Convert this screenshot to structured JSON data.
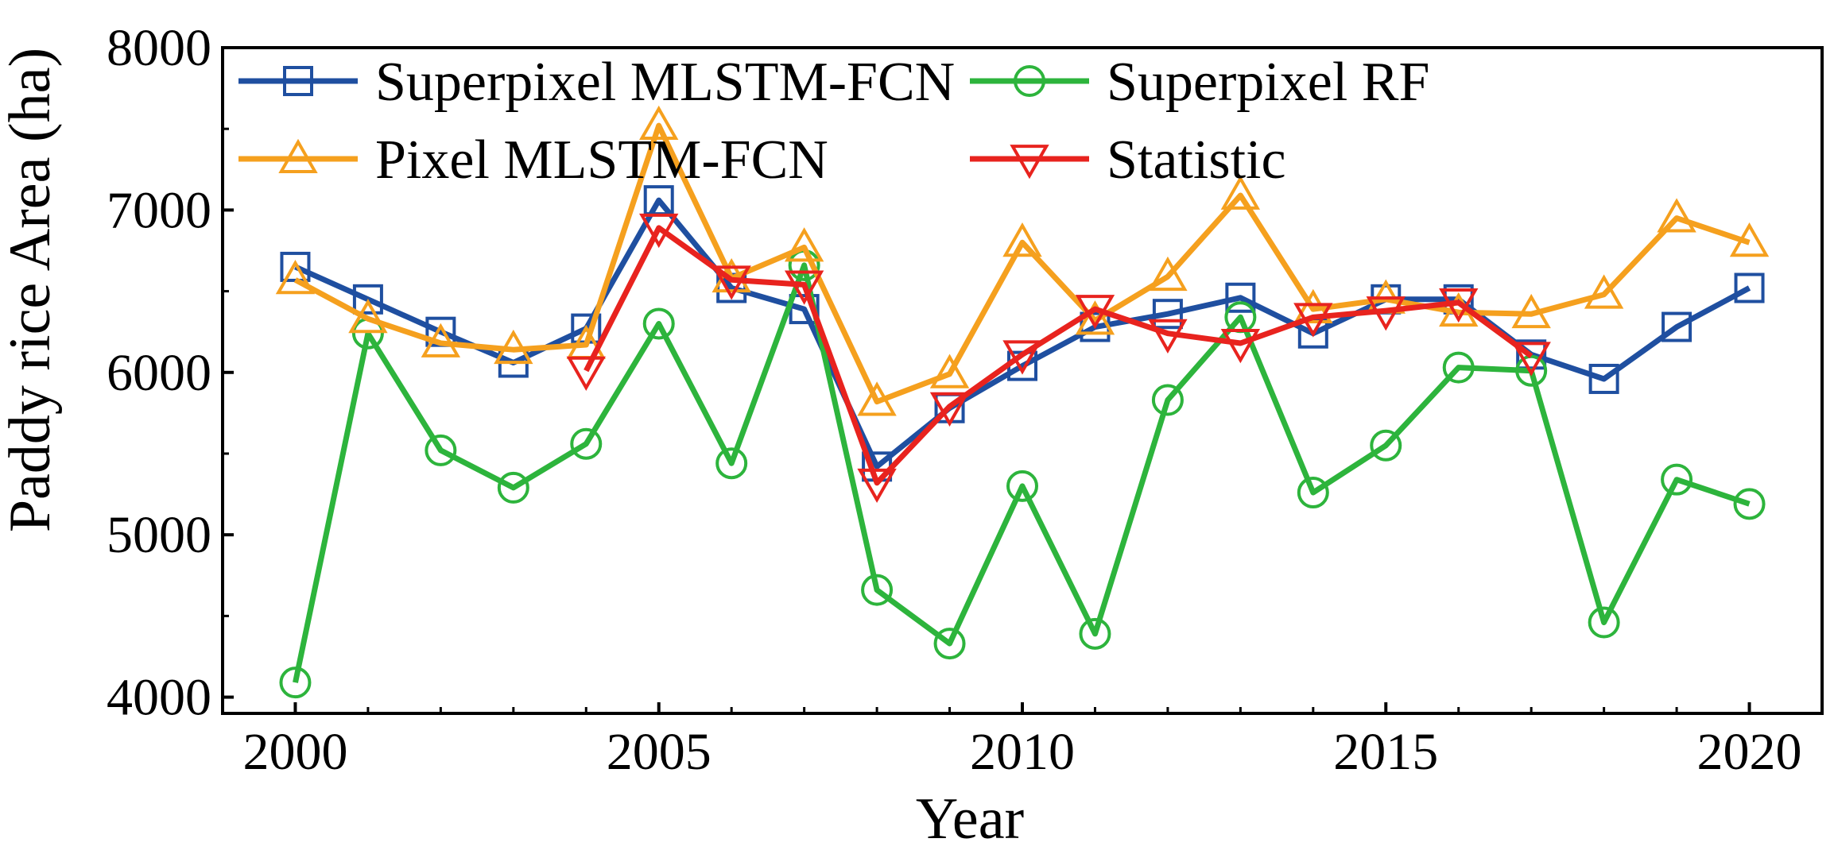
{
  "chart_data": {
    "type": "line",
    "title": "",
    "xlabel": "Year",
    "ylabel": "Paddy rice Area (ha)",
    "xlim": [
      1999,
      2021
    ],
    "ylim": [
      3900,
      8000
    ],
    "x_ticks": [
      2000,
      2005,
      2010,
      2015,
      2020
    ],
    "x_tick_labels": [
      "2000",
      "2005",
      "2010",
      "2015",
      "2020"
    ],
    "y_ticks": [
      4000,
      5000,
      6000,
      7000,
      8000
    ],
    "y_tick_labels": [
      "4000",
      "5000",
      "6000",
      "7000",
      "8000"
    ],
    "legend_position": "top",
    "series": [
      {
        "name": "Superpixel MLSTM-FCN",
        "color": "#1f4fa0",
        "marker": "square",
        "x": [
          2000,
          2001,
          2002,
          2003,
          2004,
          2005,
          2006,
          2007,
          2008,
          2009,
          2010,
          2011,
          2012,
          2013,
          2014,
          2015,
          2016,
          2017,
          2018,
          2019,
          2020
        ],
        "y": [
          6650,
          6450,
          6250,
          6060,
          6270,
          7060,
          6520,
          6390,
          5420,
          5780,
          6040,
          6280,
          6360,
          6460,
          6240,
          6450,
          6450,
          6110,
          5960,
          6280,
          6520
        ]
      },
      {
        "name": "Superpixel RF",
        "color": "#2db43c",
        "marker": "circle",
        "x": [
          2000,
          2001,
          2002,
          2003,
          2004,
          2005,
          2006,
          2007,
          2008,
          2009,
          2010,
          2011,
          2012,
          2013,
          2014,
          2015,
          2016,
          2017,
          2018,
          2019,
          2020
        ],
        "y": [
          4090,
          6240,
          5520,
          5290,
          5560,
          6300,
          5440,
          6660,
          4660,
          4330,
          5300,
          4390,
          5830,
          6340,
          5260,
          5550,
          6030,
          6010,
          4460,
          5340,
          5190
        ]
      },
      {
        "name": "Pixel MLSTM-FCN",
        "color": "#f5a01e",
        "marker": "triangle-up",
        "x": [
          2000,
          2001,
          2002,
          2003,
          2004,
          2005,
          2006,
          2007,
          2008,
          2009,
          2010,
          2011,
          2012,
          2013,
          2014,
          2015,
          2016,
          2017,
          2018,
          2019,
          2020
        ],
        "y": [
          6570,
          6330,
          6180,
          6140,
          6170,
          7520,
          6580,
          6770,
          5820,
          5990,
          6800,
          6320,
          6590,
          7090,
          6390,
          6450,
          6370,
          6360,
          6480,
          6950,
          6800
        ]
      },
      {
        "name": "Statistic",
        "color": "#e8231e",
        "marker": "triangle-down",
        "x": [
          2004,
          2005,
          2006,
          2007,
          2008,
          2009,
          2010,
          2011,
          2012,
          2013,
          2014,
          2015,
          2016,
          2017
        ],
        "y": [
          6010,
          6890,
          6570,
          6540,
          5320,
          5790,
          6110,
          6390,
          6240,
          6180,
          6340,
          6380,
          6430,
          6100
        ]
      }
    ]
  }
}
